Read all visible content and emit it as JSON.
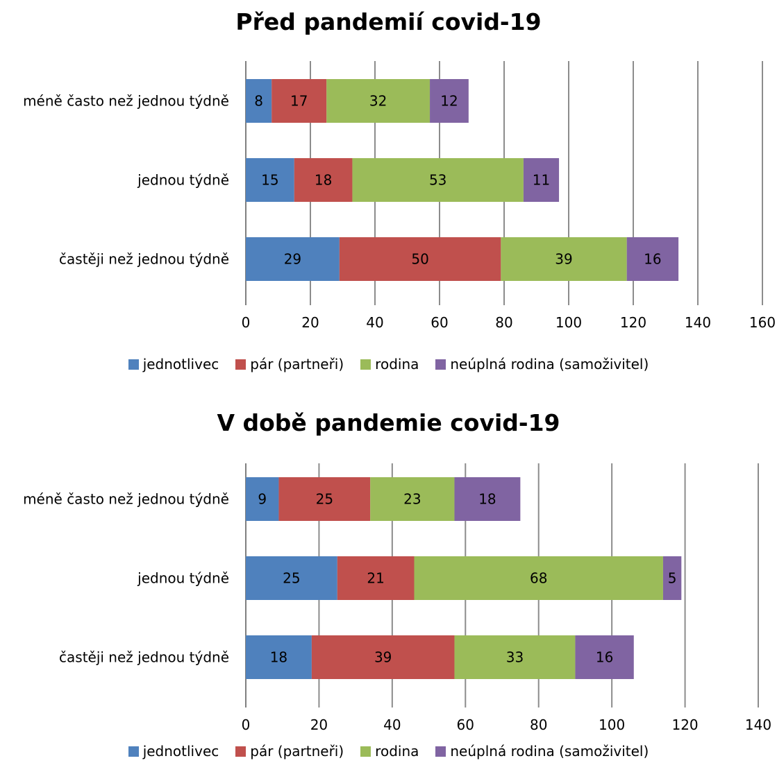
{
  "chart_data": [
    {
      "type": "bar",
      "orientation": "horizontal",
      "stacked": true,
      "title": "Před pandemií covid-19",
      "categories": [
        "méně často než jednou týdně",
        "jednou týdně",
        "častěji než jednou týdně"
      ],
      "series": [
        {
          "name": "jednotlivec",
          "color": "#4F81BD",
          "values": [
            8,
            15,
            29
          ]
        },
        {
          "name": "pár (partneři)",
          "color": "#C0504D",
          "values": [
            17,
            18,
            50
          ]
        },
        {
          "name": "rodina",
          "color": "#9BBB59",
          "values": [
            32,
            53,
            39
          ]
        },
        {
          "name": "neúplná rodina (samoživitel)",
          "color": "#8064A2",
          "values": [
            12,
            11,
            16
          ]
        }
      ],
      "xlim": [
        0,
        160
      ],
      "xticks": [
        "0",
        "20",
        "40",
        "60",
        "80",
        "100",
        "120",
        "140",
        "160"
      ],
      "grid": "vertical",
      "legend": "bottom",
      "data_labels": true
    },
    {
      "type": "bar",
      "orientation": "horizontal",
      "stacked": true,
      "title": "V době pandemie covid-19",
      "categories": [
        "méně často než jednou týdně",
        "jednou týdně",
        "častěji než jednou týdně"
      ],
      "series": [
        {
          "name": "jednotlivec",
          "color": "#4F81BD",
          "values": [
            9,
            25,
            18
          ]
        },
        {
          "name": "pár (partneři)",
          "color": "#C0504D",
          "values": [
            25,
            21,
            39
          ]
        },
        {
          "name": "rodina",
          "color": "#9BBB59",
          "values": [
            23,
            68,
            33
          ]
        },
        {
          "name": "neúplná rodina (samoživitel)",
          "color": "#8064A2",
          "values": [
            18,
            5,
            16
          ]
        }
      ],
      "xlim": [
        0,
        140
      ],
      "xticks": [
        "0",
        "20",
        "40",
        "60",
        "80",
        "100",
        "120",
        "140"
      ],
      "grid": "vertical",
      "legend": "bottom",
      "data_labels": true
    }
  ]
}
